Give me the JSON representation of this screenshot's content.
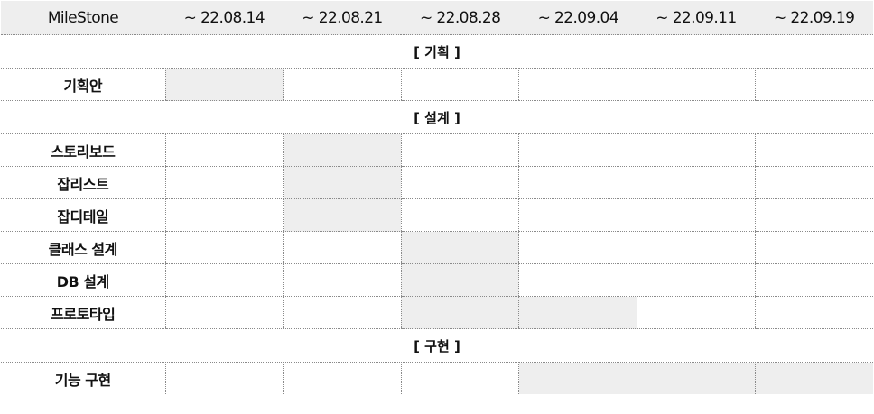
{
  "header": {
    "label": "MileStone",
    "weeks": [
      "~ 22.08.14",
      "~ 22.08.21",
      "~ 22.08.28",
      "~ 22.09.04",
      "~ 22.09.11",
      "~ 22.09.19"
    ]
  },
  "colors": {
    "header_bg": "#eeeeee",
    "active_cell": "#eeeeee",
    "grid_line": "#8a8a8a"
  },
  "sections": [
    {
      "title": "[ 기획 ]",
      "tasks": [
        {
          "name": "기획안",
          "weeks_active": [
            1,
            0,
            0,
            0,
            0,
            0
          ]
        }
      ]
    },
    {
      "title": "[ 설계 ]",
      "tasks": [
        {
          "name": "스토리보드",
          "weeks_active": [
            0,
            1,
            0,
            0,
            0,
            0
          ]
        },
        {
          "name": "잡리스트",
          "weeks_active": [
            0,
            1,
            0,
            0,
            0,
            0
          ]
        },
        {
          "name": "잡디테일",
          "weeks_active": [
            0,
            1,
            0,
            0,
            0,
            0
          ]
        },
        {
          "name": "클래스 설계",
          "weeks_active": [
            0,
            0,
            1,
            0,
            0,
            0
          ]
        },
        {
          "name": "DB 설계",
          "weeks_active": [
            0,
            0,
            1,
            0,
            0,
            0
          ]
        },
        {
          "name": "프로토타입",
          "weeks_active": [
            0,
            0,
            1,
            1,
            0,
            0
          ]
        }
      ]
    },
    {
      "title": "[ 구현 ]",
      "tasks": [
        {
          "name": "기능 구현",
          "weeks_active": [
            0,
            0,
            0,
            1,
            1,
            1
          ]
        }
      ]
    }
  ]
}
